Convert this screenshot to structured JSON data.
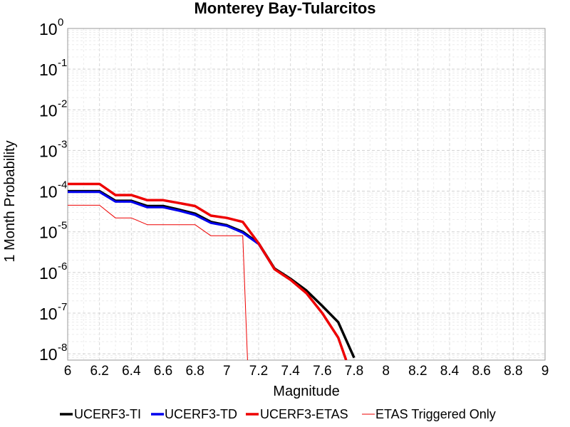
{
  "chart_data": {
    "type": "line",
    "title": "Monterey Bay-Tularcitos",
    "xlabel": "Magnitude",
    "ylabel": "1 Month Probability",
    "xlim": [
      6,
      9
    ],
    "ylim": [
      7e-09,
      1
    ],
    "yscale": "log",
    "grid": true,
    "legend_position": "bottom",
    "x_ticks": [
      "6",
      "6.2",
      "6.4",
      "6.6",
      "6.8",
      "7",
      "7.2",
      "7.4",
      "7.6",
      "7.8",
      "8",
      "8.2",
      "8.4",
      "8.6",
      "8.8",
      "9"
    ],
    "y_ticks": [
      {
        "base": "10",
        "exp": "0"
      },
      {
        "base": "10",
        "exp": "-1"
      },
      {
        "base": "10",
        "exp": "-2"
      },
      {
        "base": "10",
        "exp": "-3"
      },
      {
        "base": "10",
        "exp": "-4"
      },
      {
        "base": "10",
        "exp": "-5"
      },
      {
        "base": "10",
        "exp": "-6"
      },
      {
        "base": "10",
        "exp": "-7"
      },
      {
        "base": "10",
        "exp": "-8"
      }
    ],
    "series": [
      {
        "name": "UCERF3-TI",
        "color": "#000000",
        "width": 3.5,
        "x": [
          6.0,
          6.2,
          6.3,
          6.4,
          6.5,
          6.6,
          6.7,
          6.8,
          6.9,
          7.0,
          7.1,
          7.2,
          7.3,
          7.4,
          7.5,
          7.6,
          7.7,
          7.8
        ],
        "y": [
          0.0001,
          0.0001,
          5.8e-05,
          5.8e-05,
          4.3e-05,
          4.3e-05,
          3.5e-05,
          2.8e-05,
          1.75e-05,
          1.45e-05,
          1e-05,
          5.2e-06,
          1.25e-06,
          7e-07,
          3.6e-07,
          1.5e-07,
          6e-08,
          8e-09
        ]
      },
      {
        "name": "UCERF3-TD",
        "color": "#0000ee",
        "width": 3,
        "x": [
          6.0,
          6.2,
          6.3,
          6.4,
          6.5,
          6.6,
          6.7,
          6.8,
          6.9,
          7.0,
          7.1,
          7.2,
          7.3,
          7.4,
          7.5,
          7.6,
          7.7,
          7.75
        ],
        "y": [
          9.5e-05,
          9.5e-05,
          5.5e-05,
          5.5e-05,
          4e-05,
          4e-05,
          3.3e-05,
          2.6e-05,
          1.65e-05,
          1.4e-05,
          9.5e-06,
          5e-06,
          1.2e-06,
          6.6e-07,
          3.1e-07,
          1e-07,
          2.5e-08,
          7e-09
        ]
      },
      {
        "name": "UCERF3-ETAS",
        "color": "#ee0000",
        "width": 3.5,
        "x": [
          6.0,
          6.2,
          6.3,
          6.4,
          6.5,
          6.6,
          6.7,
          6.8,
          6.9,
          7.0,
          7.1,
          7.2,
          7.3,
          7.4,
          7.5,
          7.6,
          7.7,
          7.75
        ],
        "y": [
          0.00015,
          0.00015,
          8e-05,
          8e-05,
          6e-05,
          6e-05,
          5.1e-05,
          4.3e-05,
          2.5e-05,
          2.2e-05,
          1.75e-05,
          5.2e-06,
          1.2e-06,
          6.6e-07,
          3.1e-07,
          1e-07,
          2.5e-08,
          7e-09
        ]
      },
      {
        "name": "ETAS Triggered Only",
        "color": "#ee0000",
        "width": 1,
        "x": [
          6.0,
          6.2,
          6.3,
          6.4,
          6.5,
          6.6,
          6.7,
          6.8,
          6.9,
          7.0,
          7.1,
          7.13
        ],
        "y": [
          4.5e-05,
          4.5e-05,
          2.2e-05,
          2.2e-05,
          1.5e-05,
          1.5e-05,
          1.5e-05,
          1.5e-05,
          8e-06,
          8e-06,
          8e-06,
          7e-09
        ]
      }
    ]
  }
}
